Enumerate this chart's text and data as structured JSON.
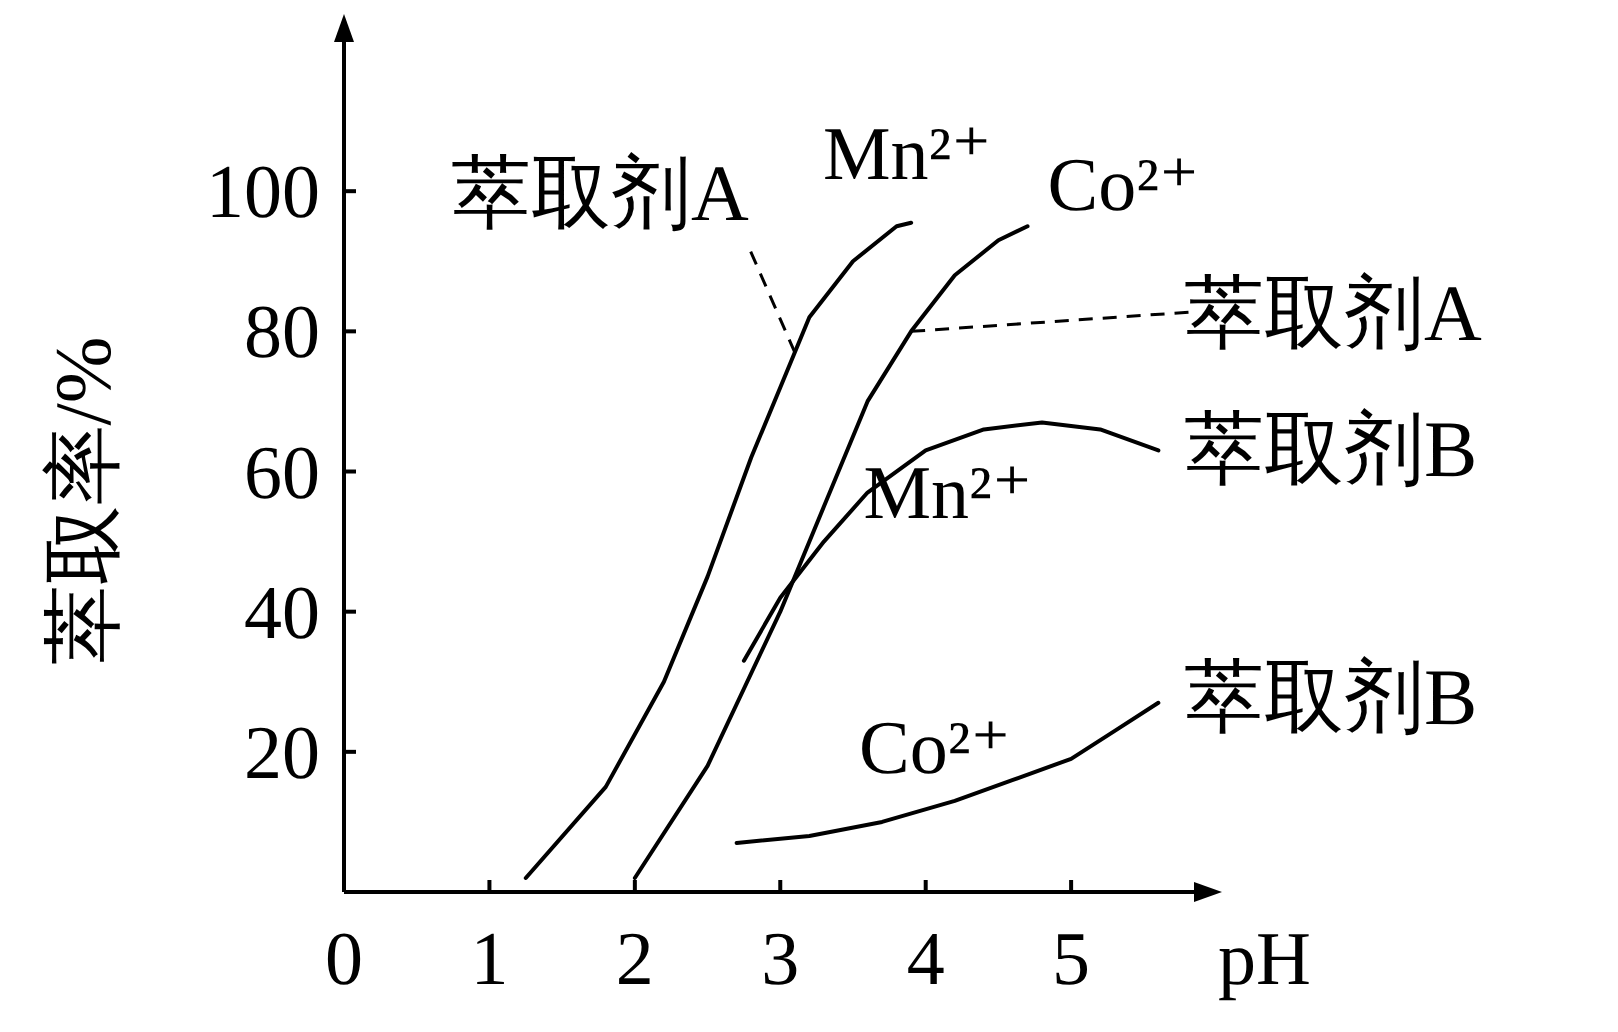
{
  "chart_data": {
    "type": "line",
    "xlabel": "pH",
    "ylabel": "萃取率/%",
    "xlim": [
      0,
      5.9
    ],
    "ylim": [
      0,
      123
    ],
    "xticks": [
      0,
      1,
      2,
      3,
      4,
      5
    ],
    "yticks": [
      20,
      40,
      60,
      80,
      100
    ],
    "grid": false,
    "marker": "none",
    "series": [
      {
        "name": "Mn²⁺",
        "color": "#000000",
        "x": [
          1.25,
          1.8,
          2.2,
          2.5,
          2.8,
          3.0,
          3.2,
          3.5,
          3.8,
          3.9
        ],
        "values": [
          2,
          15,
          30,
          45,
          62,
          72,
          82,
          90,
          95,
          95.5
        ]
      },
      {
        "name": "Co²⁺",
        "color": "#000000",
        "x": [
          2.0,
          2.5,
          3.0,
          3.3,
          3.6,
          3.9,
          4.2,
          4.5,
          4.7
        ],
        "values": [
          2,
          18,
          40,
          55,
          70,
          80,
          88,
          93,
          95
        ]
      },
      {
        "name": "Mn²⁺",
        "color": "#000000",
        "x": [
          2.75,
          3.0,
          3.3,
          3.6,
          4.0,
          4.4,
          4.8,
          5.2,
          5.6
        ],
        "values": [
          33,
          42,
          50,
          57,
          63,
          66,
          67,
          66,
          63
        ]
      },
      {
        "name": "Co²⁺",
        "color": "#000000",
        "x": [
          2.7,
          3.2,
          3.7,
          4.2,
          4.6,
          5.0,
          5.3,
          5.6
        ],
        "values": [
          7,
          8,
          10,
          13,
          16,
          19,
          23,
          27
        ]
      }
    ],
    "annotations": [
      {
        "text": "萃取剂A",
        "x": 3.1,
        "y": 77
      },
      "萃取剂A",
      "萃取剂B",
      "萃取剂B"
    ]
  }
}
